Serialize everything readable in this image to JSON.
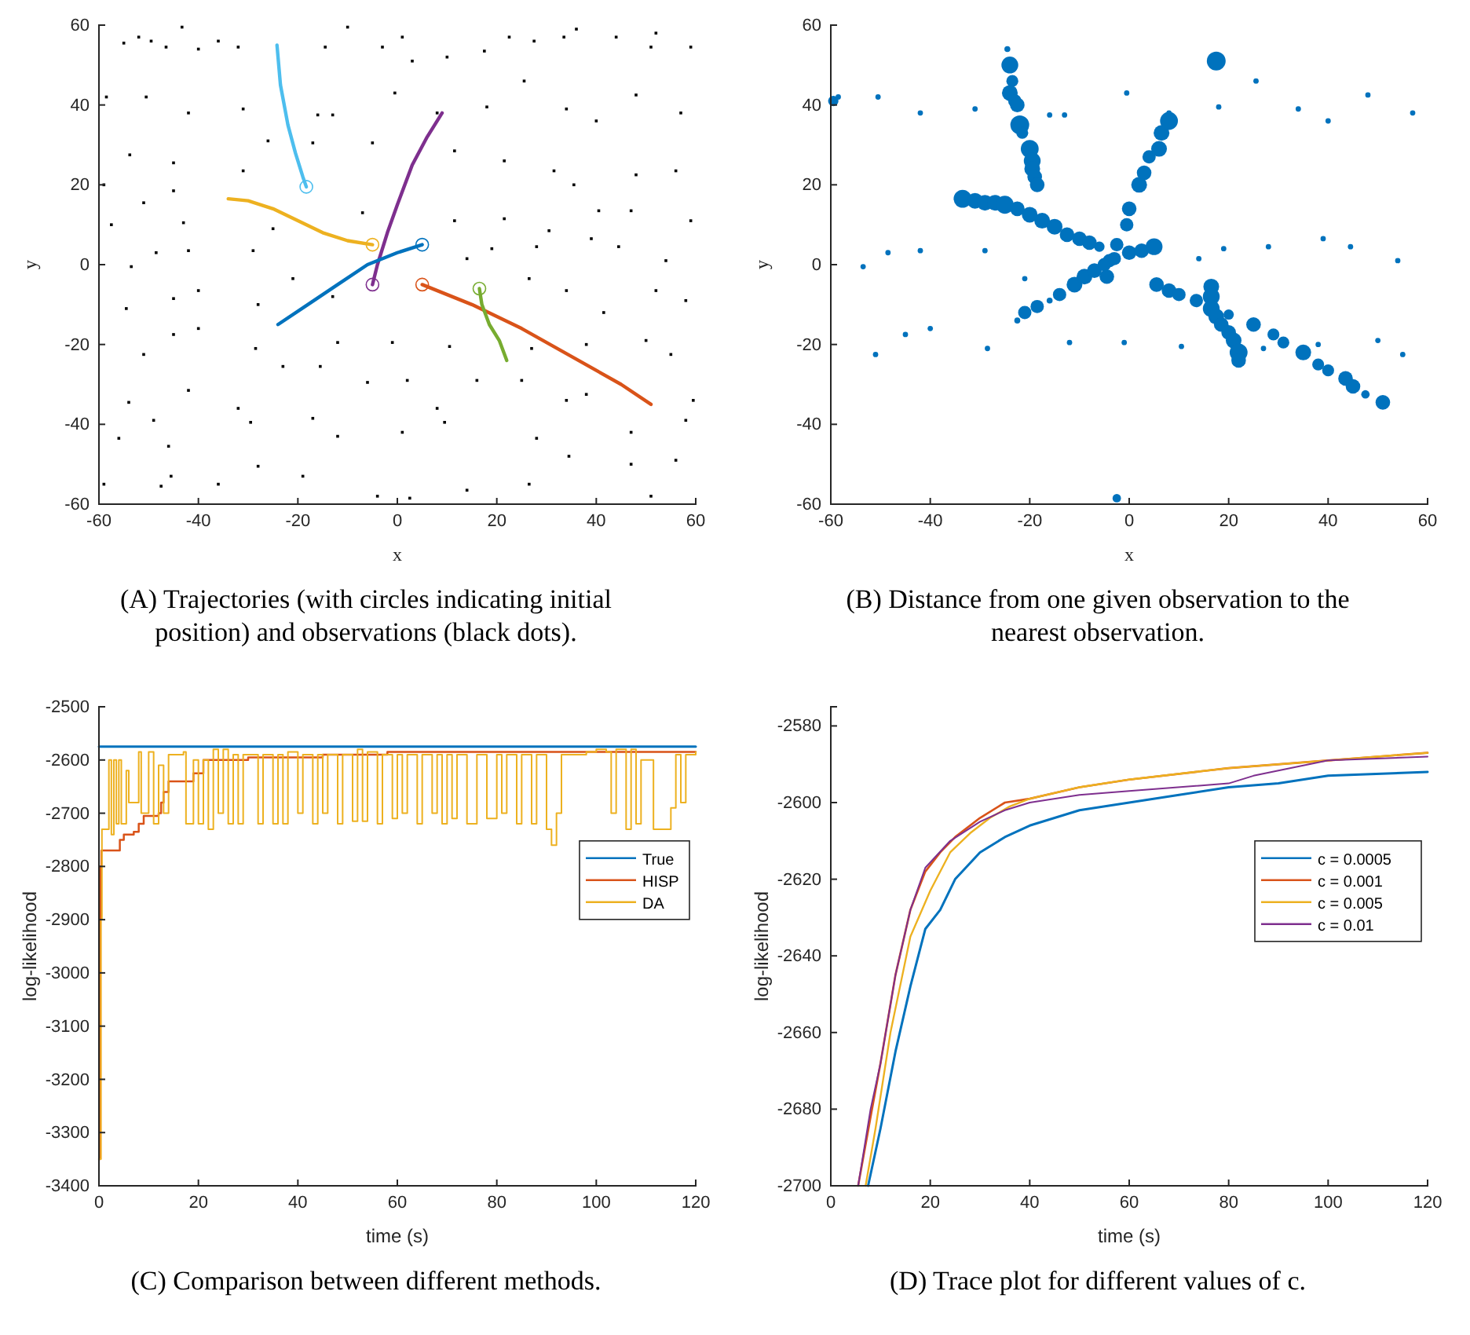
{
  "chart_data": [
    {
      "type": "scatter",
      "title": "(A) Trajectories (with circles indicating initial position) and observations (black dots).",
      "xlabel": "x",
      "ylabel": "y",
      "xlim": [
        -60,
        60
      ],
      "ylim": [
        -60,
        60
      ],
      "xticks": [
        -60,
        -40,
        -20,
        0,
        20,
        40,
        60
      ],
      "yticks": [
        -60,
        -40,
        -20,
        0,
        20,
        40,
        60
      ],
      "series": [
        {
          "type": "scatter",
          "marker": "square",
          "color": "#000000",
          "x": [
            -43.3,
            -10,
            -55,
            -52,
            -49.5,
            -46.5,
            -40,
            -36,
            -32,
            -14.5,
            -3,
            1,
            3,
            10,
            17.5,
            22.5,
            27.5,
            33.5,
            36,
            44,
            51,
            52,
            59,
            -58.5,
            -50.5,
            -42,
            -31,
            -16,
            -13,
            -0.5,
            8,
            18,
            25.5,
            34,
            40,
            48,
            57,
            -53.8,
            -45,
            -31,
            -26,
            -17,
            -5,
            11.5,
            21.5,
            31.5,
            35.5,
            48,
            56,
            -59,
            -51,
            -45,
            -43,
            -57.5,
            -25,
            -7,
            11.5,
            21.5,
            30.5,
            40.5,
            47,
            59,
            -53.5,
            -48.5,
            -42,
            -29,
            -21,
            14,
            19,
            28,
            39,
            44.5,
            54,
            -54.5,
            -45,
            -40,
            -28,
            -13,
            26.5,
            34,
            41.5,
            52,
            58,
            -51,
            -45,
            -40,
            -28.5,
            -12,
            -1,
            10.5,
            27,
            38,
            50,
            55,
            -54,
            -49,
            -42,
            -32,
            -23,
            -15.5,
            -6,
            2,
            8,
            16,
            25,
            34,
            38,
            59.5,
            -56,
            -46,
            -29.5,
            -17,
            -12,
            1,
            9.5,
            28,
            47,
            58,
            -59,
            -47.5,
            -45.5,
            -36,
            -28,
            -19,
            -4,
            2.5,
            14,
            26.5,
            34.5,
            47,
            51,
            56
          ],
          "values": [
            59.5,
            59.5,
            55.5,
            57,
            56,
            54.5,
            54,
            56,
            54.5,
            54.5,
            54.5,
            57,
            51,
            52,
            53.5,
            57,
            56,
            57,
            59,
            57,
            54.5,
            58,
            54.5,
            42,
            42,
            38,
            39,
            37.5,
            37.5,
            43,
            38,
            39.5,
            46,
            39,
            36,
            42.5,
            38,
            27.5,
            25.5,
            23.5,
            31,
            30.5,
            30.5,
            28.5,
            26,
            23.5,
            20,
            22.5,
            23.5,
            20,
            15.5,
            18.5,
            10.5,
            10,
            9,
            13,
            11,
            11.5,
            8.5,
            13.5,
            13.5,
            11,
            -0.5,
            3,
            3.5,
            3.5,
            -3.5,
            1.5,
            4,
            4.5,
            6.5,
            4.5,
            1,
            -11,
            -8.5,
            -6.5,
            -10,
            -8,
            -3.5,
            -6.5,
            -12,
            -6.5,
            -9,
            -22.5,
            -17.5,
            -16,
            -21,
            -19.5,
            -19.5,
            -20.5,
            -21,
            -20,
            -19,
            -22.5,
            -34.5,
            -39,
            -31.5,
            -36,
            -25.5,
            -25.5,
            -29.5,
            -29,
            -36,
            -29,
            -29,
            -34,
            -32.5,
            -34,
            -43.5,
            -45.5,
            -39.5,
            -38.5,
            -43,
            -42,
            -39.5,
            -43.5,
            -42,
            -39,
            -55,
            -55.5,
            -53,
            -55,
            -50.5,
            -53,
            -58,
            -58.5,
            -56.5,
            -55,
            -48,
            -50,
            -58,
            -49
          ]
        },
        {
          "type": "line",
          "color": "#4dbeee",
          "x": [
            -24.2,
            -23.5,
            -22,
            -20.5,
            -19,
            -18.3
          ],
          "values": [
            55,
            45,
            35,
            28,
            22,
            19.5
          ]
        },
        {
          "type": "line",
          "color": "#edb120",
          "x": [
            -34,
            -30,
            -25,
            -20,
            -15,
            -10,
            -5
          ],
          "values": [
            16.5,
            16,
            14,
            11,
            8,
            6,
            5
          ]
        },
        {
          "type": "line",
          "color": "#7e2f8e",
          "x": [
            -5,
            -4,
            -2,
            0,
            3,
            6,
            9
          ],
          "values": [
            -5,
            0,
            8,
            15,
            25,
            32,
            38
          ]
        },
        {
          "type": "line",
          "color": "#0072bd",
          "x": [
            -24,
            -18,
            -12,
            -6,
            0,
            5
          ],
          "values": [
            -15,
            -10,
            -5,
            0,
            3,
            5
          ]
        },
        {
          "type": "line",
          "color": "#d95319",
          "x": [
            5,
            15,
            25,
            35,
            45,
            51
          ],
          "values": [
            -5,
            -10,
            -16,
            -23,
            -30,
            -35
          ]
        },
        {
          "type": "line",
          "color": "#77ac30",
          "x": [
            16.5,
            17,
            18.5,
            20.5,
            22
          ],
          "values": [
            -6,
            -10,
            -15,
            -19,
            -24
          ]
        },
        {
          "type": "scatter",
          "marker": "circle",
          "colors": [
            "#4dbeee",
            "#edb120",
            "#7e2f8e",
            "#0072bd",
            "#d95319",
            "#77ac30"
          ],
          "x": [
            -18.3,
            -5,
            -5,
            5,
            5,
            16.5
          ],
          "values": [
            19.5,
            5,
            -5,
            5,
            -5,
            -6
          ]
        }
      ]
    },
    {
      "type": "bubble",
      "title": "(B) Distance from one given observation to the nearest observation.",
      "xlabel": "x",
      "ylabel": "y",
      "xlim": [
        -60,
        60
      ],
      "ylim": [
        -60,
        60
      ],
      "xticks": [
        -60,
        -40,
        -20,
        0,
        20,
        40,
        60
      ],
      "yticks": [
        -60,
        -40,
        -20,
        0,
        20,
        40,
        60
      ],
      "color": "#0072bd",
      "x": [
        -24.5,
        -24,
        -23.5,
        -24,
        -23,
        -22.5,
        -22,
        -21.5,
        -20,
        -19.5,
        -19.5,
        -19,
        -18.5,
        -33.5,
        -31,
        -29,
        -27,
        -25,
        -22.5,
        -20,
        -17.5,
        -15,
        -12.5,
        -10,
        -8,
        -6,
        -4.5,
        -4,
        -2.5,
        -0.5,
        0,
        2,
        3,
        4,
        6,
        6.5,
        8,
        -22.5,
        -21,
        -18.5,
        -16,
        -14,
        -11,
        -9,
        -7,
        -5,
        -3,
        0,
        2.5,
        5,
        5.5,
        8,
        10,
        13.5,
        20,
        25,
        29,
        31,
        35,
        38,
        40,
        43.5,
        45,
        47.5,
        51,
        16.5,
        16.5,
        16.5,
        17.5,
        18.5,
        20,
        21,
        22,
        22,
        17.5,
        -59.5,
        -2.5,
        -58.5,
        -50.5,
        -42,
        -31,
        -16,
        -13,
        -0.5,
        8,
        18,
        25.5,
        34,
        40,
        48,
        57,
        -53.5,
        -48.5,
        -42,
        -29,
        -21,
        14,
        19,
        28,
        39,
        44.5,
        54,
        -51,
        -45,
        -40,
        -28.5,
        -12,
        -1,
        10.5,
        27,
        38,
        50,
        55
      ],
      "values": [
        54,
        50,
        46,
        43,
        41,
        40,
        35,
        33,
        29,
        26,
        24,
        22,
        20,
        16.5,
        16,
        15.5,
        15.5,
        15,
        14,
        12.5,
        11,
        9.5,
        7.5,
        6.5,
        5.5,
        4.5,
        -3,
        1,
        5,
        10,
        14,
        20,
        23,
        27,
        29,
        33,
        36,
        -14,
        -12,
        -10.5,
        -9,
        -7.5,
        -5,
        -3,
        -1.5,
        0,
        1.5,
        3,
        3.5,
        4.5,
        -5,
        -6.5,
        -7.5,
        -9,
        -12.5,
        -15,
        -17.5,
        -19.5,
        -22,
        -25,
        -26.5,
        -28.5,
        -30.5,
        -32.5,
        -34.5,
        -5.5,
        -8,
        -11,
        -13,
        -15,
        -17,
        -19,
        -22,
        -24,
        51,
        41,
        -58.5,
        42,
        42,
        38,
        39,
        37.5,
        37.5,
        43,
        38,
        39.5,
        46,
        39,
        36,
        42.5,
        38,
        -0.5,
        3,
        3.5,
        3.5,
        -3.5,
        1.5,
        4,
        4.5,
        6.5,
        4.5,
        1,
        -22.5,
        -17.5,
        -16,
        -21,
        -19.5,
        -19.5,
        -20.5,
        -21,
        -20,
        -19,
        -22.5
      ],
      "sizes": [
        0.1,
        0.8,
        0.4,
        0.7,
        0.5,
        0.6,
        1,
        0.4,
        0.9,
        0.8,
        0.7,
        0.6,
        0.6,
        0.9,
        0.7,
        0.7,
        0.7,
        0.9,
        0.6,
        0.7,
        0.7,
        0.7,
        0.6,
        0.6,
        0.6,
        0.3,
        0.6,
        0.5,
        0.5,
        0.5,
        0.6,
        0.7,
        0.6,
        0.5,
        0.7,
        0.7,
        0.9,
        0.1,
        0.5,
        0.5,
        0.1,
        0.5,
        0.7,
        0.7,
        0.6,
        0.5,
        0.5,
        0.6,
        0.6,
        0.8,
        0.6,
        0.6,
        0.5,
        0.5,
        0.3,
        0.6,
        0.4,
        0.4,
        0.7,
        0.4,
        0.4,
        0.6,
        0.6,
        0.2,
        0.6,
        0.7,
        0.8,
        0.8,
        0.7,
        0.6,
        0.6,
        0.7,
        0.9,
        0.6,
        1,
        0.3,
        0.2,
        0.08,
        0.08,
        0.08,
        0.08,
        0.08,
        0.08,
        0.08,
        0.08,
        0.08,
        0.08,
        0.08,
        0.08,
        0.08,
        0.08,
        0.08,
        0.08,
        0.08,
        0.08,
        0.08,
        0.08,
        0.08,
        0.08,
        0.08,
        0.08,
        0.08,
        0.08,
        0.08,
        0.08,
        0.08,
        0.08,
        0.08,
        0.08,
        0.08,
        0.08,
        0.08,
        0.08
      ]
    },
    {
      "type": "line",
      "title": "(C) Comparison between different methods.",
      "xlabel": "time (s)",
      "ylabel": "log-likelihood",
      "xlim": [
        0,
        120
      ],
      "ylim": [
        -3400,
        -2500
      ],
      "xticks": [
        0,
        20,
        40,
        60,
        80,
        100,
        120
      ],
      "yticks": [
        -3400,
        -3300,
        -3200,
        -3100,
        -3000,
        -2900,
        -2800,
        -2700,
        -2600,
        -2500
      ],
      "legend": "right",
      "series": [
        {
          "name": "True",
          "type": "line",
          "color": "#0072bd",
          "x": [
            0,
            120
          ],
          "values": [
            -2575,
            -2575
          ]
        },
        {
          "name": "HISP",
          "type": "step",
          "color": "#d95319",
          "x": [
            0,
            0.3,
            0.5,
            4,
            4.2,
            5,
            7,
            8,
            9,
            12,
            12.5,
            13,
            14,
            19,
            21,
            30,
            45,
            58,
            120
          ],
          "values": [
            -3350,
            -2800,
            -2770,
            -2770,
            -2750,
            -2740,
            -2735,
            -2720,
            -2705,
            -2700,
            -2680,
            -2660,
            -2640,
            -2625,
            -2600,
            -2595,
            -2590,
            -2585,
            -2585
          ]
        },
        {
          "name": "DA",
          "type": "step",
          "color": "#edb120",
          "x": [
            0,
            0.4,
            0.6,
            1.5,
            2,
            2.5,
            3,
            3.5,
            4,
            4.5,
            5.5,
            6,
            7,
            8,
            8.5,
            10,
            11,
            12,
            13,
            14,
            17,
            17.5,
            19,
            20,
            21,
            22,
            23,
            24,
            25,
            26,
            27,
            28,
            29,
            32,
            33,
            35,
            36,
            37,
            38,
            40,
            41,
            43,
            44,
            45,
            46,
            48,
            49,
            51,
            52,
            53,
            54,
            56,
            57,
            59,
            60,
            61,
            62,
            64,
            65,
            67,
            68,
            69,
            70,
            71,
            72,
            74,
            76,
            78,
            80,
            81,
            82,
            84,
            85,
            87,
            88,
            90,
            91,
            92,
            93,
            95,
            98,
            100,
            102,
            103,
            104,
            106,
            107,
            108,
            109,
            111,
            111.5,
            114,
            115,
            116,
            117,
            118,
            120
          ],
          "values": [
            -3350,
            -2900,
            -2730,
            -2730,
            -2600,
            -2740,
            -2600,
            -2720,
            -2600,
            -2720,
            -2620,
            -2680,
            -2680,
            -2585,
            -2700,
            -2585,
            -2720,
            -2610,
            -2700,
            -2590,
            -2585,
            -2720,
            -2600,
            -2720,
            -2600,
            -2730,
            -2580,
            -2700,
            -2580,
            -2720,
            -2590,
            -2720,
            -2590,
            -2720,
            -2590,
            -2720,
            -2590,
            -2720,
            -2585,
            -2700,
            -2590,
            -2720,
            -2590,
            -2700,
            -2590,
            -2720,
            -2590,
            -2715,
            -2580,
            -2715,
            -2585,
            -2720,
            -2590,
            -2710,
            -2590,
            -2700,
            -2590,
            -2720,
            -2590,
            -2700,
            -2590,
            -2720,
            -2590,
            -2710,
            -2590,
            -2720,
            -2590,
            -2710,
            -2590,
            -2700,
            -2590,
            -2720,
            -2590,
            -2720,
            -2590,
            -2730,
            -2760,
            -2700,
            -2590,
            -2590,
            -2585,
            -2580,
            -2585,
            -2700,
            -2580,
            -2730,
            -2580,
            -2720,
            -2600,
            -2600,
            -2730,
            -2730,
            -2690,
            -2590,
            -2680,
            -2590,
            -2585
          ]
        }
      ]
    },
    {
      "type": "line",
      "title": "(D) Trace plot for different values of c.",
      "xlabel": "time (s)",
      "ylabel": "log-likelihood",
      "xlim": [
        0,
        120
      ],
      "ylim": [
        -2700,
        -2575
      ],
      "xticks": [
        0,
        20,
        40,
        60,
        80,
        100,
        120
      ],
      "yticks": [
        -2700,
        -2680,
        -2660,
        -2640,
        -2620,
        -2600,
        -2580
      ],
      "legend": "right",
      "series": [
        {
          "name": "c = 0.0005",
          "color": "#0072bd",
          "x": [
            7.5,
            10,
            13,
            16,
            18,
            19,
            22,
            25,
            30,
            35,
            40,
            50,
            60,
            70,
            80,
            90,
            100,
            120
          ],
          "values": [
            -2700,
            -2685,
            -2665,
            -2648,
            -2638,
            -2633,
            -2628,
            -2620,
            -2613,
            -2609,
            -2606,
            -2602,
            -2600,
            -2598,
            -2596,
            -2595,
            -2593,
            -2592
          ]
        },
        {
          "name": "c = 0.001",
          "color": "#d95319",
          "x": [
            5.5,
            8,
            10,
            13,
            16,
            19,
            22,
            25,
            30,
            35,
            40,
            50,
            60,
            80,
            100,
            120
          ],
          "values": [
            -2700,
            -2682,
            -2668,
            -2645,
            -2628,
            -2618,
            -2613,
            -2609,
            -2604,
            -2600,
            -2599,
            -2596,
            -2594,
            -2591,
            -2589,
            -2587
          ]
        },
        {
          "name": "c = 0.005",
          "color": "#edb120",
          "x": [
            7,
            9,
            12,
            16,
            20,
            24,
            28,
            32,
            36,
            40,
            50,
            60,
            80,
            100,
            120
          ],
          "values": [
            -2700,
            -2685,
            -2660,
            -2635,
            -2623,
            -2613,
            -2608,
            -2604,
            -2601,
            -2599,
            -2596,
            -2594,
            -2591,
            -2589,
            -2587
          ]
        },
        {
          "name": "c = 0.01",
          "color": "#7e2f8e",
          "x": [
            5.5,
            8,
            10,
            13,
            16,
            19,
            24,
            30,
            35,
            40,
            50,
            60,
            80,
            85,
            100,
            120
          ],
          "values": [
            -2700,
            -2680,
            -2668,
            -2645,
            -2628,
            -2617,
            -2610,
            -2605,
            -2602,
            -2600,
            -2598,
            -2597,
            -2595,
            -2593,
            -2589,
            -2588
          ]
        }
      ]
    }
  ]
}
